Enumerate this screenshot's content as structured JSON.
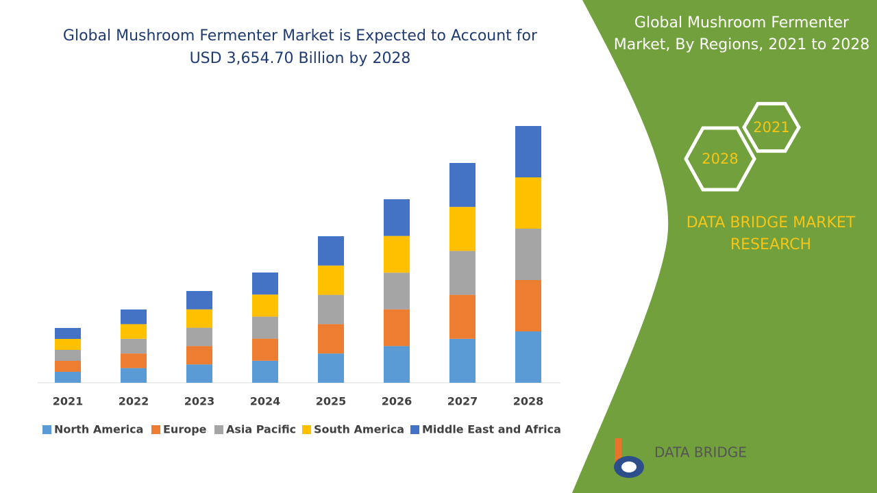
{
  "chart_data": {
    "type": "stacked_bar",
    "title": "Global Mushroom Fermenter Market is Expected to Account for USD 3,654.70 Billion by 2028",
    "categories": [
      "2021",
      "2022",
      "2023",
      "2024",
      "2025",
      "2026",
      "2027",
      "2028"
    ],
    "series": [
      {
        "name": "North America",
        "color": "#5b9bd5",
        "values": [
          16,
          21.4,
          26.8,
          32.2,
          42.8,
          53.6,
          64.2,
          75
        ]
      },
      {
        "name": "Europe",
        "color": "#ed7d31",
        "values": [
          16,
          21.4,
          26.8,
          32.2,
          42.8,
          53.6,
          64.2,
          75
        ]
      },
      {
        "name": "Asia Pacific",
        "color": "#a5a5a5",
        "values": [
          16,
          21.4,
          26.8,
          32.2,
          42.8,
          53.6,
          64.2,
          75
        ]
      },
      {
        "name": "South America",
        "color": "#ffc000",
        "values": [
          16,
          21.4,
          26.8,
          32.2,
          42.8,
          53.6,
          64.2,
          75
        ]
      },
      {
        "name": "Middle East and Africa",
        "color": "#4472c4",
        "values": [
          16,
          21.4,
          26.8,
          32.2,
          42.8,
          53.6,
          64.2,
          75
        ]
      }
    ]
  },
  "panel": {
    "title": "Global Mushroom Fermenter Market, By Regions, 2021 to 2028",
    "hex_labels": [
      "2021",
      "2028"
    ],
    "brand": "DATA BRIDGE MARKET RESEARCH",
    "logo": "DATA BRIDGE"
  }
}
